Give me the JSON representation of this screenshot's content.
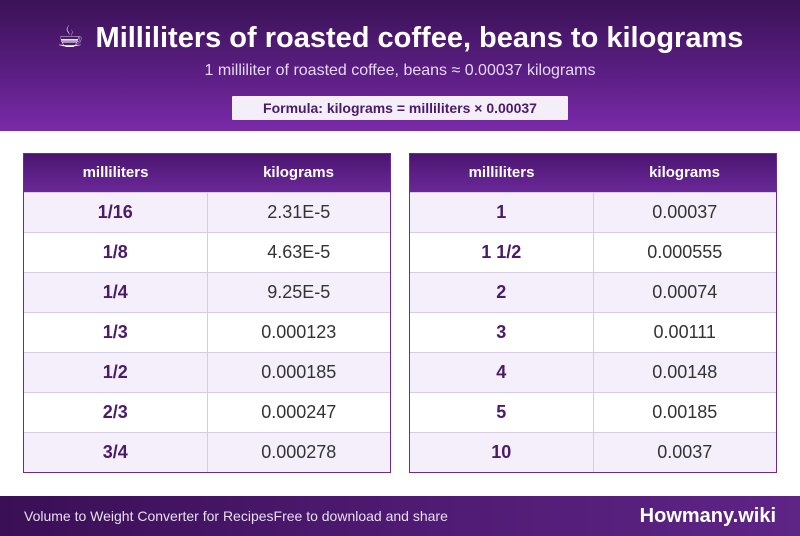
{
  "header": {
    "icon": "coffee-cup-icon",
    "icon_glyph": "☕",
    "title": "Milliliters of roasted coffee, beans to kilograms",
    "subtitle": "1 milliliter of roasted coffee, beans ≈ 0.00037 kilograms",
    "formula": "Formula: kilograms = milliliters × 0.00037"
  },
  "tables": {
    "left": {
      "columns": [
        "milliliters",
        "kilograms"
      ],
      "rows": [
        [
          "1/16",
          "2.31E-5"
        ],
        [
          "1/8",
          "4.63E-5"
        ],
        [
          "1/4",
          "9.25E-5"
        ],
        [
          "1/3",
          "0.000123"
        ],
        [
          "1/2",
          "0.000185"
        ],
        [
          "2/3",
          "0.000247"
        ],
        [
          "3/4",
          "0.000278"
        ]
      ]
    },
    "right": {
      "columns": [
        "milliliters",
        "kilograms"
      ],
      "rows": [
        [
          "1",
          "0.00037"
        ],
        [
          "1 1/2",
          "0.000555"
        ],
        [
          "2",
          "0.00074"
        ],
        [
          "3",
          "0.00111"
        ],
        [
          "4",
          "0.00148"
        ],
        [
          "5",
          "0.00185"
        ],
        [
          "10",
          "0.0037"
        ]
      ]
    }
  },
  "footer": {
    "left_text": "Volume to Weight Converter for Recipes",
    "middle_text": "Free to download and share",
    "brand": "Howmany.wiki"
  },
  "colors": {
    "header_dark": "#3b1257",
    "header_light": "#7a2aa8",
    "accent_text": "#4a1a6b",
    "row_alt": "#f4effa"
  }
}
